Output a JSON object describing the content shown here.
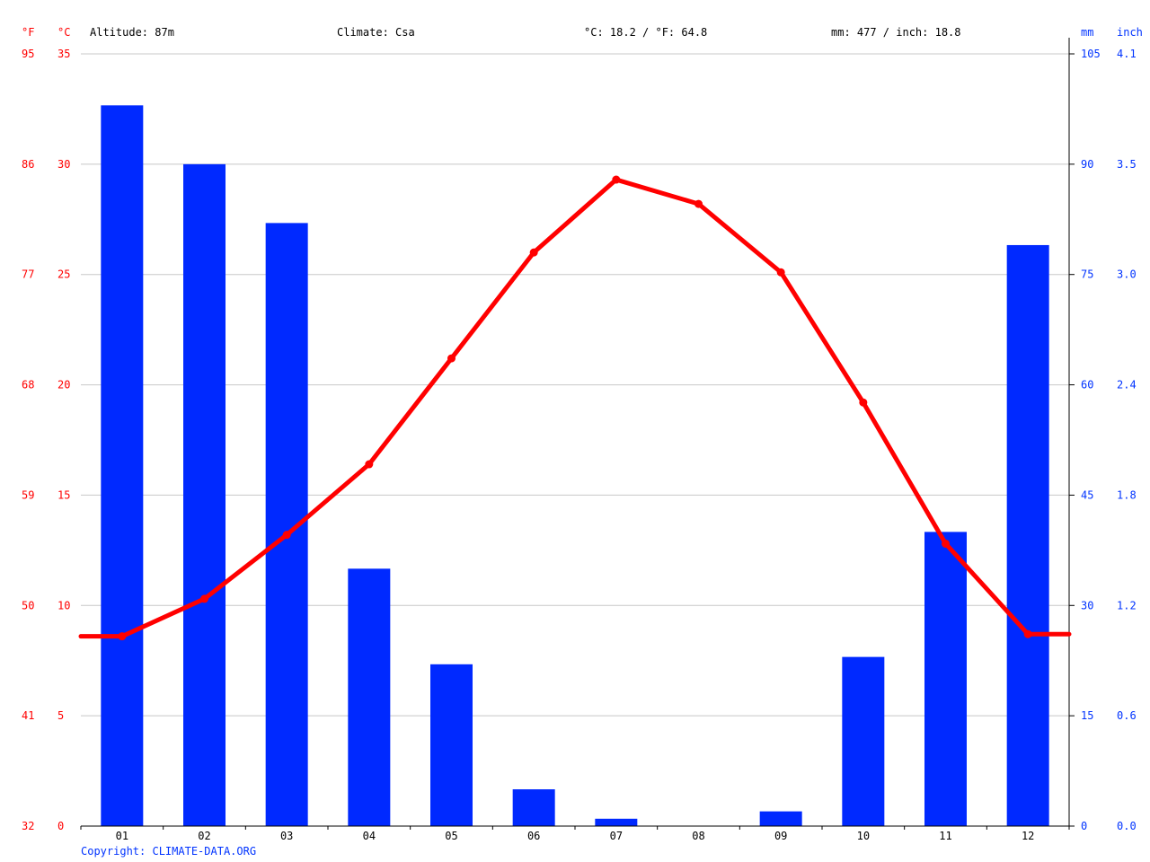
{
  "header": {
    "altitude": "Altitude: 87m",
    "climate": "Climate: Csa",
    "average_temp": "°C: 18.2 / °F: 64.8",
    "precipitation": "mm: 477 / inch: 18.8"
  },
  "axis_units": {
    "fahrenheit": "°F",
    "celsius": "°C",
    "mm": "mm",
    "inch": "inch"
  },
  "copyright": "Copyright: CLIMATE-DATA.ORG",
  "colors": {
    "temperature": "#ff0000",
    "precipitation": "#0029ff",
    "gridline": "#c8c8c8",
    "mm_tick_labels": "#0033ff"
  },
  "chart_data": {
    "type": "bar",
    "categories": [
      "01",
      "02",
      "03",
      "04",
      "05",
      "06",
      "07",
      "08",
      "09",
      "10",
      "11",
      "12"
    ],
    "series": [
      {
        "type": "bar",
        "axis": "mm",
        "values": [
          98,
          90,
          82,
          35,
          22,
          5,
          1,
          0,
          2,
          23,
          40,
          79
        ]
      },
      {
        "type": "line",
        "axis": "°C",
        "values": [
          8.6,
          10.3,
          13.2,
          16.4,
          21.2,
          26.0,
          29.3,
          28.2,
          25.1,
          19.2,
          12.8,
          8.7
        ]
      }
    ],
    "celsius_ticks": [
      "35",
      "30",
      "25",
      "20",
      "15",
      "10",
      "5",
      "0"
    ],
    "fahrenheit_ticks": [
      "95",
      "86",
      "77",
      "68",
      "59",
      "50",
      "41",
      "32"
    ],
    "mm_ticks": [
      "105",
      "90",
      "75",
      "60",
      "45",
      "30",
      "15",
      "0"
    ],
    "inch_ticks": [
      "4.1",
      "3.5",
      "3.0",
      "2.4",
      "1.8",
      "1.2",
      "0.6",
      "0.0"
    ],
    "celsius_range": [
      0,
      35
    ],
    "mm_range": [
      0,
      105
    ],
    "grid": true
  }
}
